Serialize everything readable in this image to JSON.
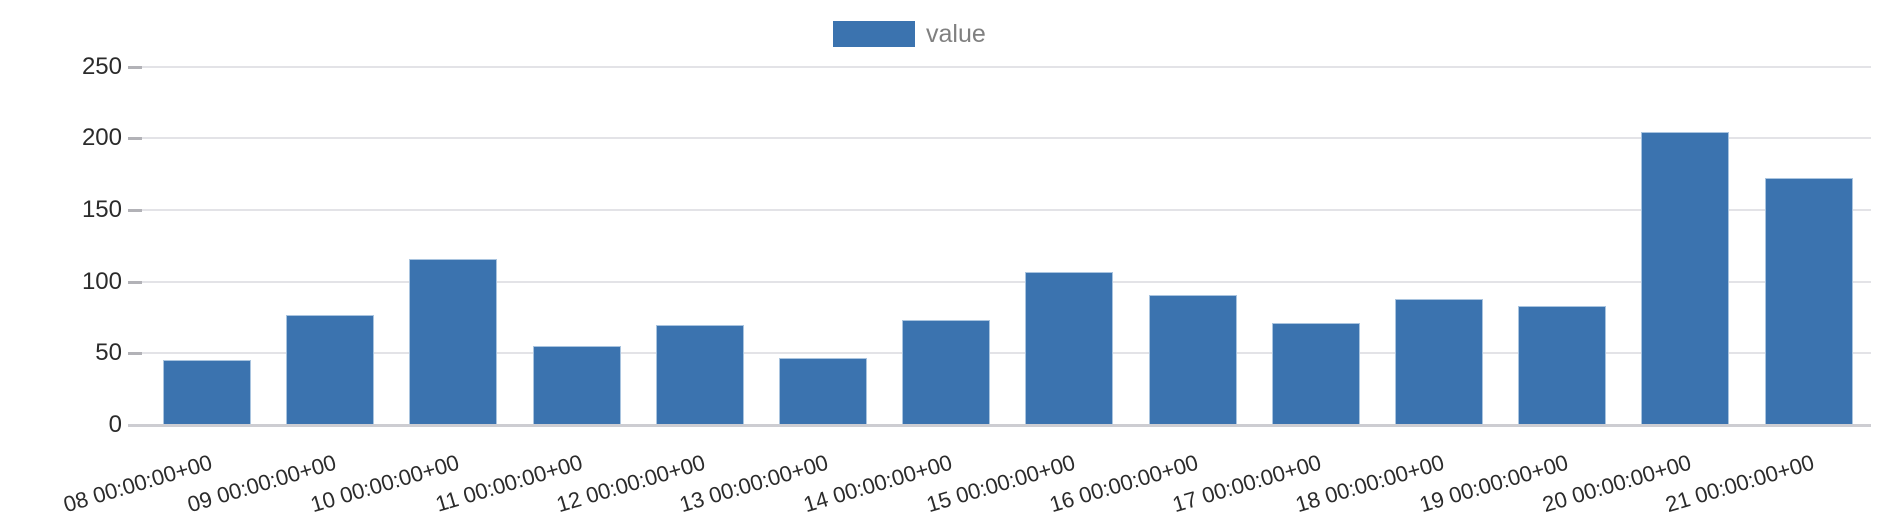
{
  "legend": {
    "label": "value"
  },
  "chart_data": {
    "type": "bar",
    "legend_label": "value",
    "title": "",
    "xlabel": "",
    "ylabel": "",
    "categories": [
      "08 00:00:00+00",
      "09 00:00:00+00",
      "10 00:00:00+00",
      "11 00:00:00+00",
      "12 00:00:00+00",
      "13 00:00:00+00",
      "14 00:00:00+00",
      "15 00:00:00+00",
      "16 00:00:00+00",
      "17 00:00:00+00",
      "18 00:00:00+00",
      "19 00:00:00+00",
      "20 00:00:00+00",
      "21 00:00:00+00"
    ],
    "values": [
      45,
      77,
      116,
      55,
      70,
      47,
      73,
      107,
      91,
      71,
      88,
      83,
      204,
      172
    ],
    "series": [
      {
        "name": "value",
        "values": [
          45,
          77,
          116,
          55,
          70,
          47,
          73,
          107,
          91,
          71,
          88,
          83,
          204,
          172
        ]
      }
    ],
    "ylim": [
      0,
      250
    ],
    "yticks": [
      0,
      50,
      100,
      150,
      200,
      250
    ],
    "grid": true,
    "legend_position": "top-center",
    "x_labels_rotated": true,
    "x_labels_clipped_at_bottom": true
  },
  "colors": {
    "bar": "#3b73af",
    "bar_edge": "#a9c4df",
    "grid": "#e3e3e7",
    "baseline": "#cdcdd2",
    "tick": "#b2b2b7",
    "axis_text": "#2b2b2b",
    "legend_text": "#808080",
    "background": "#ffffff"
  }
}
